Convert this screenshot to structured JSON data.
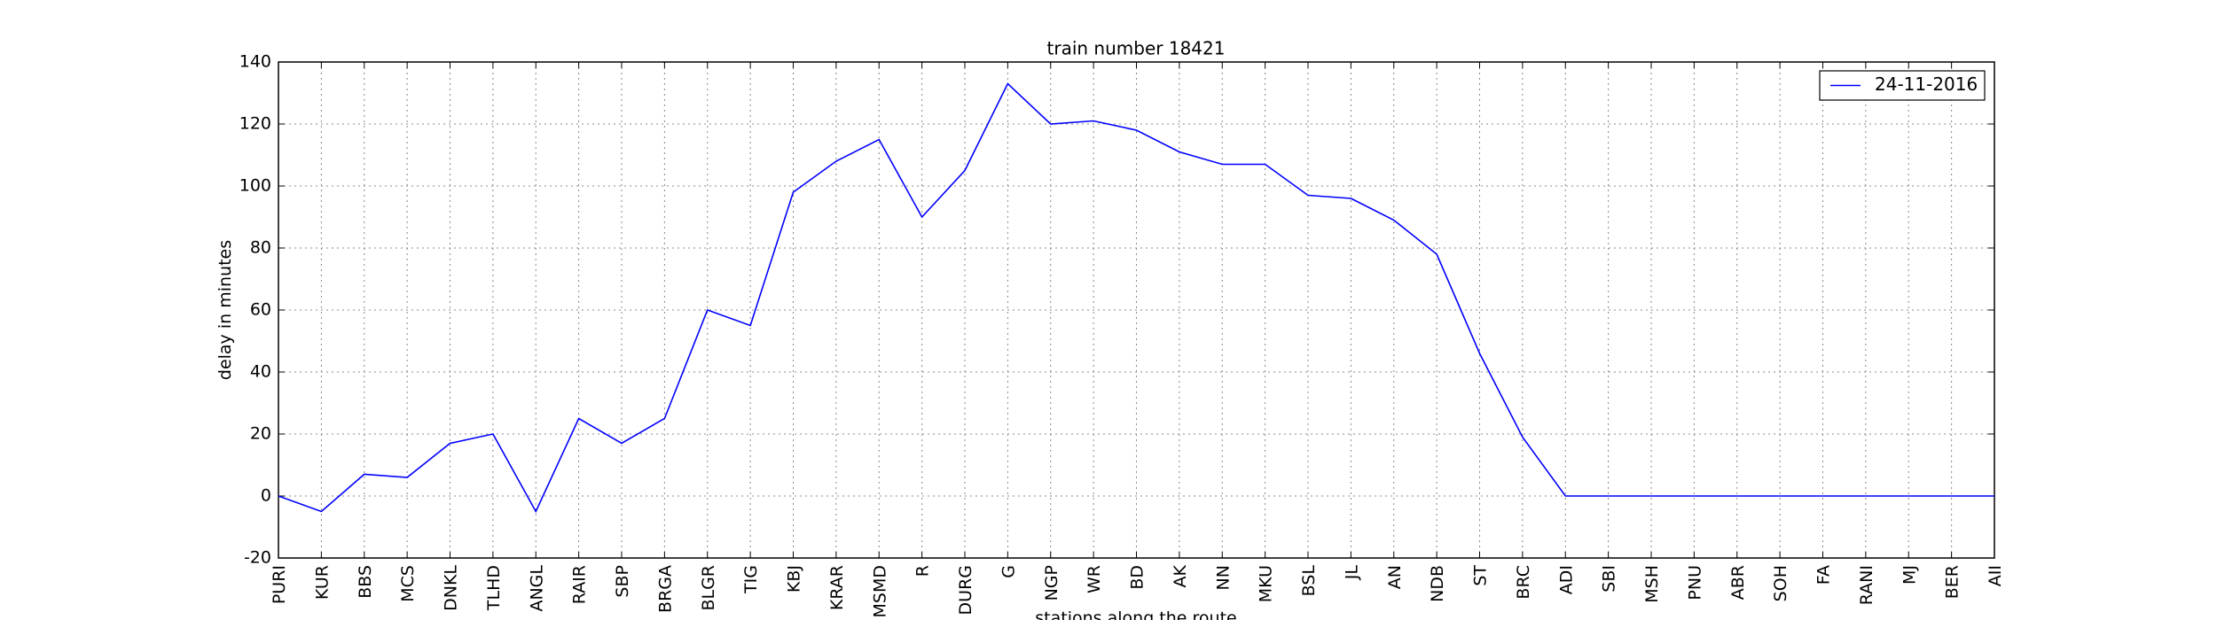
{
  "chart_data": {
    "type": "line",
    "title": "train number 18421",
    "x_label": "stations along the route",
    "y_label": "delay in minutes",
    "categories": [
      "PURI",
      "KUR",
      "BBS",
      "MCS",
      "DNKL",
      "TLHD",
      "ANGL",
      "RAIR",
      "SBP",
      "BRGA",
      "BLGR",
      "TIG",
      "KBJ",
      "KRAR",
      "MSMD",
      "R",
      "DURG",
      "G",
      "NGP",
      "WR",
      "BD",
      "AK",
      "NN",
      "MKU",
      "BSL",
      "JL",
      "AN",
      "NDB",
      "ST",
      "BRC",
      "ADI",
      "SBI",
      "MSH",
      "PNU",
      "ABR",
      "SOH",
      "FA",
      "RANI",
      "MJ",
      "BER",
      "AII"
    ],
    "series": [
      {
        "name": "24-11-2016",
        "color": "#0000ff",
        "values": [
          0,
          -5,
          7,
          6,
          17,
          20,
          -5,
          25,
          17,
          25,
          60,
          55,
          98,
          108,
          115,
          90,
          105,
          133,
          120,
          121,
          118,
          111,
          107,
          107,
          97,
          96,
          89,
          78,
          46,
          19,
          0,
          0,
          0,
          0,
          0,
          0,
          0,
          0,
          0,
          0,
          0
        ]
      }
    ],
    "ylim": [
      -20,
      140
    ],
    "yticks": [
      -20,
      0,
      20,
      40,
      60,
      80,
      100,
      120,
      140
    ],
    "grid": true,
    "legend": "upper right"
  }
}
